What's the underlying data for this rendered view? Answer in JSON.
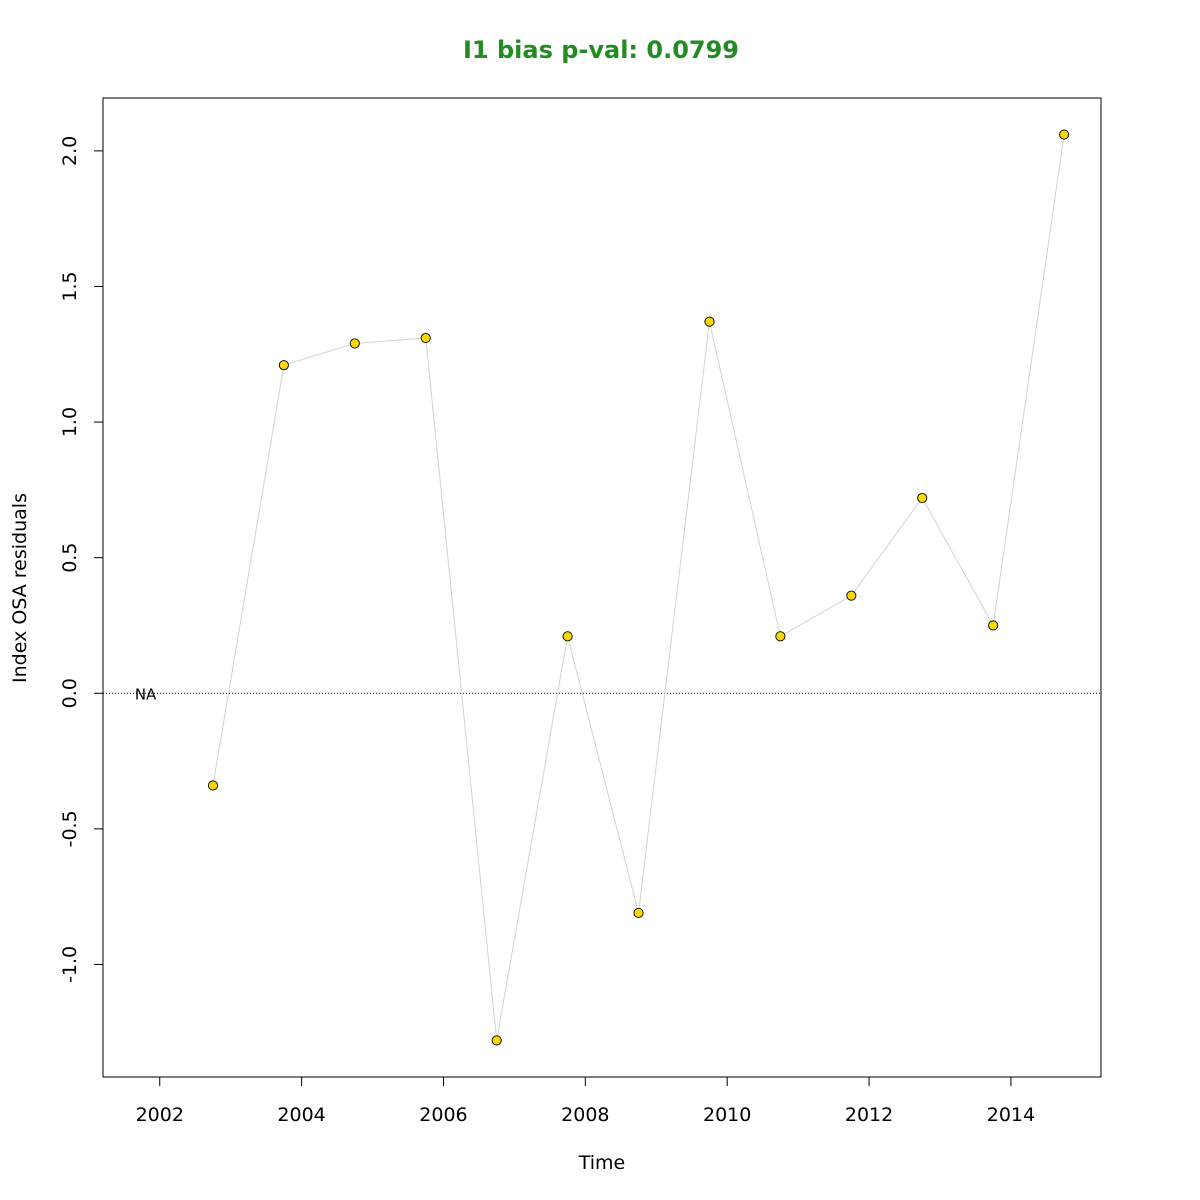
{
  "chart_data": {
    "type": "scatter",
    "title": "I1 bias p-val: 0.0799",
    "title_color": "#228B22",
    "xlabel": "Time",
    "ylabel": "Index OSA residuals",
    "xlim": [
      2001.2,
      2015.27
    ],
    "ylim": [
      -1.415,
      2.195
    ],
    "x_ticks": [
      2002,
      2004,
      2006,
      2008,
      2010,
      2012,
      2014
    ],
    "y_ticks": [
      -1.0,
      -0.5,
      0.0,
      0.5,
      1.0,
      1.5,
      2.0
    ],
    "y_tick_labels": [
      "-1.0",
      "-0.5",
      "0.0",
      "0.5",
      "1.0",
      "1.5",
      "2.0"
    ],
    "reference_line_y": 0,
    "annotation": {
      "text": "NA",
      "x": 2001.8,
      "y": 0.0
    },
    "series": [
      {
        "point_color": "#FFD700",
        "line_color": "#d3d3d3",
        "x": [
          2002.75,
          2003.75,
          2004.75,
          2005.75,
          2006.75,
          2007.75,
          2008.75,
          2009.75,
          2010.75,
          2011.75,
          2012.75,
          2013.75,
          2014.75
        ],
        "y": [
          -0.34,
          1.21,
          1.29,
          1.31,
          -1.28,
          0.21,
          -0.81,
          1.37,
          0.21,
          0.36,
          0.72,
          0.25,
          2.06
        ]
      }
    ]
  }
}
